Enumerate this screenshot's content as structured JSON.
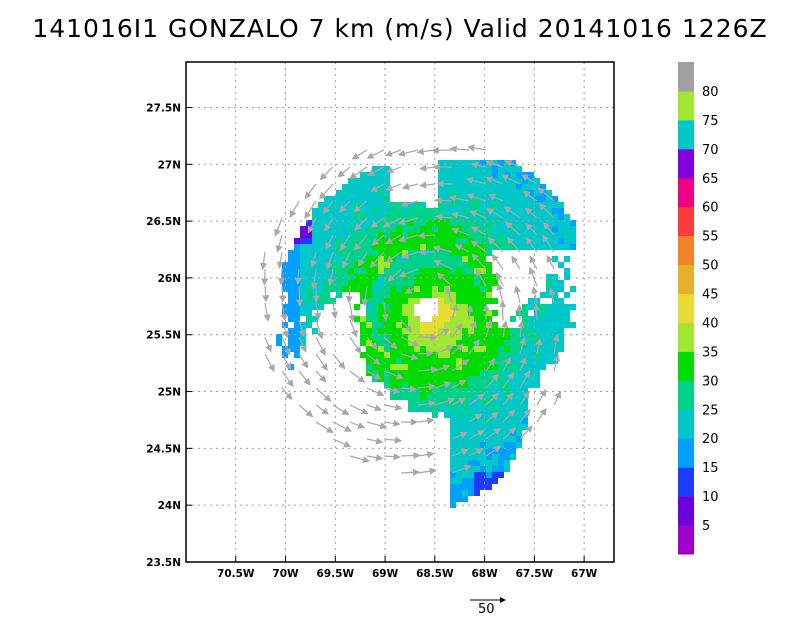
{
  "title": "141016I1 GONZALO 7 km (m/s) Valid 20141016 1226Z",
  "map": {
    "lon_range": [
      -71,
      -66.7
    ],
    "lat_range": [
      23.5,
      27.9
    ],
    "lon_ticks": [
      {
        "value": -70.5,
        "label": "70.5W"
      },
      {
        "value": -70,
        "label": "70W"
      },
      {
        "value": -69.5,
        "label": "69.5W"
      },
      {
        "value": -69,
        "label": "69W"
      },
      {
        "value": -68.5,
        "label": "68.5W"
      },
      {
        "value": -68,
        "label": "68W"
      },
      {
        "value": -67.5,
        "label": "67.5W"
      },
      {
        "value": -67,
        "label": "67W"
      }
    ],
    "lat_ticks": [
      {
        "value": 23.5,
        "label": "23.5N"
      },
      {
        "value": 24,
        "label": "24N"
      },
      {
        "value": 24.5,
        "label": "24.5N"
      },
      {
        "value": 25,
        "label": "25N"
      },
      {
        "value": 25.5,
        "label": "25.5N"
      },
      {
        "value": 26,
        "label": "26N"
      },
      {
        "value": 26.5,
        "label": "26.5N"
      },
      {
        "value": 27,
        "label": "27N"
      },
      {
        "value": 27.5,
        "label": "27.5N"
      }
    ],
    "grid": true,
    "grid_color": "#a0a0a0",
    "storm_center": {
      "lon": -68.6,
      "lat": 25.75
    },
    "eye_radius_deg": 0.12,
    "arrow_color": "#a8a8a8"
  },
  "colorbar": {
    "labels": [
      "5",
      "10",
      "15",
      "20",
      "25",
      "30",
      "35",
      "40",
      "45",
      "50",
      "55",
      "60",
      "65",
      "70",
      "75",
      "80"
    ],
    "colors": [
      "#a000c8",
      "#6e00dc",
      "#1e3cff",
      "#00a0ff",
      "#00c8c8",
      "#00d28c",
      "#00dc00",
      "#a0e632",
      "#e6dc32",
      "#e6af2d",
      "#f08228",
      "#fa3c3c",
      "#f00082",
      "#8200dc",
      "#00c8c8",
      "#a0e632",
      "#a0a0a0"
    ]
  },
  "reference_vector": {
    "label": "50"
  }
}
